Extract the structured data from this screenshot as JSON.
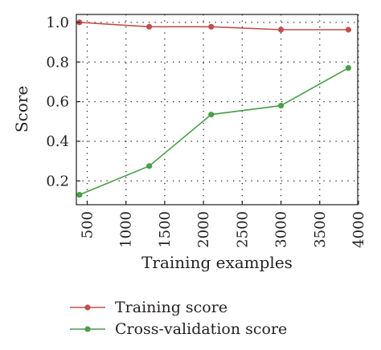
{
  "chart_data": {
    "type": "line",
    "title": "",
    "xlabel": "Training examples",
    "ylabel": "Score",
    "xlim": [
      360,
      3990
    ],
    "ylim": [
      0.08,
      1.04
    ],
    "xticks": [
      500,
      1000,
      1500,
      2000,
      2500,
      3000,
      3500,
      4000
    ],
    "xtick_labels": [
      "500",
      "1000",
      "1500",
      "2000",
      "2500",
      "3000",
      "3500",
      "4000"
    ],
    "yticks": [
      0.2,
      0.4,
      0.6,
      0.8,
      1.0
    ],
    "ytick_labels": [
      "0.2",
      "0.4",
      "0.6",
      "0.8",
      "1.0"
    ],
    "grid": true,
    "legend_position": "below",
    "x": [
      400,
      1300,
      2100,
      3000,
      3870
    ],
    "series": [
      {
        "name": "Training score",
        "color": "#c0504d",
        "values": [
          1.0,
          0.978,
          0.978,
          0.963,
          0.963
        ]
      },
      {
        "name": "Cross-validation score",
        "color": "#4a9e4a",
        "values": [
          0.13,
          0.275,
          0.535,
          0.58,
          0.77
        ]
      }
    ]
  }
}
